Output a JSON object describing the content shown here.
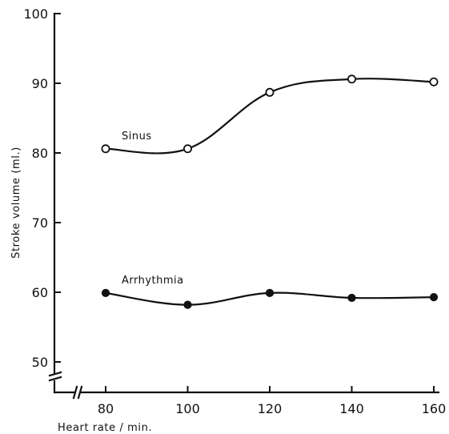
{
  "chart_data": {
    "type": "line",
    "xlabel": "Heart rate / min.",
    "ylabel": "Stroke volume  (ml.)",
    "xlim": [
      80,
      160
    ],
    "ylim": [
      50,
      100
    ],
    "x_ticks": [
      80,
      100,
      120,
      140,
      160
    ],
    "x_tick_labels": [
      "80",
      "100",
      "120",
      "140",
      "160"
    ],
    "y_ticks": [
      50,
      60,
      70,
      80,
      90,
      100
    ],
    "y_tick_labels": [
      "50",
      "60",
      "70",
      "80",
      "90",
      "100"
    ],
    "axis_breaks": true,
    "grid": false,
    "series": [
      {
        "name": "Sinus",
        "marker": "open-circle",
        "x": [
          80,
          100,
          120,
          140,
          160
        ],
        "y": [
          80.6,
          80.6,
          88.7,
          90.6,
          90.2
        ]
      },
      {
        "name": "Arrhythmia",
        "marker": "filled-circle",
        "x": [
          80,
          100,
          120,
          140,
          160
        ],
        "y": [
          59.9,
          58.2,
          59.9,
          59.2,
          59.3
        ]
      }
    ]
  }
}
